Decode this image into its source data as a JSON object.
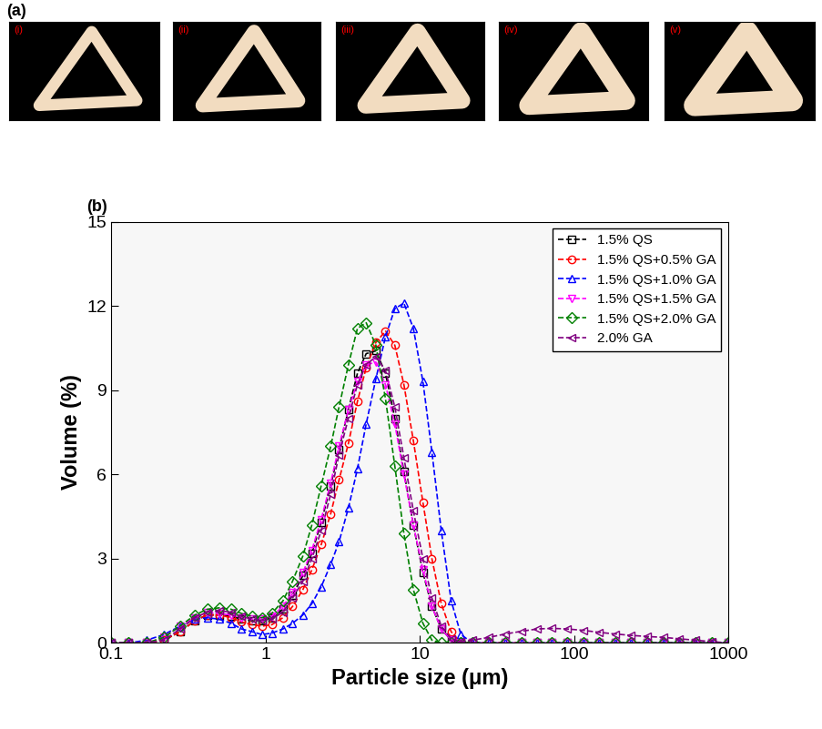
{
  "panel_a": {
    "label": "(a)",
    "photo_labels": [
      "(i)",
      "(ii)",
      "(iii)",
      "(iv)",
      "(v)"
    ]
  },
  "chart_data": {
    "type": "line",
    "panel_label": "(b)",
    "x_label": "Particle size (μm)",
    "y_label": "Volume (%)",
    "log": "x",
    "xlim": [
      0.1,
      1000
    ],
    "xticks": [
      0.1,
      1,
      10,
      100,
      1000
    ],
    "ylim": [
      0,
      15
    ],
    "yticks": [
      0,
      3,
      6,
      9,
      12,
      15
    ],
    "legend": "upper right",
    "x": [
      0.1,
      0.13,
      0.17,
      0.22,
      0.28,
      0.35,
      0.42,
      0.5,
      0.6,
      0.7,
      0.82,
      0.95,
      1.1,
      1.3,
      1.5,
      1.75,
      2.0,
      2.3,
      2.65,
      3.0,
      3.45,
      3.95,
      4.5,
      5.2,
      6.0,
      6.9,
      7.9,
      9.1,
      10.5,
      12.0,
      13.8,
      16.0,
      18.5,
      22,
      28,
      36,
      46,
      58,
      72,
      90,
      115,
      145,
      185,
      235,
      300,
      380,
      480,
      610,
      780,
      1000
    ],
    "series": [
      {
        "name": "1.5% QS",
        "color": "#000000",
        "marker": "square",
        "line_style": "dashed",
        "values": [
          0,
          0,
          0,
          0.1,
          0.4,
          0.8,
          1.0,
          1.0,
          0.95,
          0.85,
          0.8,
          0.8,
          0.9,
          1.2,
          1.7,
          2.4,
          3.2,
          4.3,
          5.6,
          6.9,
          8.3,
          9.6,
          10.3,
          10.4,
          9.6,
          8.0,
          6.1,
          4.2,
          2.5,
          1.3,
          0.5,
          0.1,
          0,
          0,
          0,
          0,
          0,
          0,
          0,
          0,
          0,
          0,
          0,
          0,
          0,
          0,
          0,
          0,
          0,
          0
        ]
      },
      {
        "name": "1.5% QS+0.5% GA",
        "color": "#ff0000",
        "marker": "circle",
        "line_style": "dashed",
        "values": [
          0,
          0,
          0,
          0.1,
          0.4,
          0.8,
          1.0,
          1.0,
          0.9,
          0.75,
          0.65,
          0.6,
          0.65,
          0.9,
          1.3,
          1.9,
          2.6,
          3.5,
          4.6,
          5.8,
          7.1,
          8.6,
          9.8,
          10.7,
          11.1,
          10.6,
          9.2,
          7.2,
          5.0,
          3.0,
          1.4,
          0.4,
          0,
          0,
          0,
          0,
          0,
          0,
          0,
          0,
          0,
          0,
          0,
          0,
          0,
          0,
          0,
          0,
          0,
          0
        ]
      },
      {
        "name": "1.5% QS+1.0% GA",
        "color": "#0000ff",
        "marker": "triangle_up",
        "line_style": "dashed",
        "values": [
          0,
          0,
          0.1,
          0.3,
          0.6,
          0.85,
          0.9,
          0.85,
          0.7,
          0.5,
          0.4,
          0.3,
          0.35,
          0.5,
          0.7,
          1.0,
          1.4,
          2.0,
          2.8,
          3.6,
          4.8,
          6.2,
          7.8,
          9.4,
          10.9,
          11.9,
          12.1,
          11.2,
          9.3,
          6.8,
          4.0,
          1.5,
          0.3,
          0,
          0,
          0,
          0,
          0,
          0,
          0,
          0,
          0,
          0,
          0,
          0,
          0,
          0,
          0,
          0,
          0
        ]
      },
      {
        "name": "1.5% QS+1.5% GA",
        "color": "#ff00ff",
        "marker": "triangle_down",
        "line_style": "dashed",
        "values": [
          0,
          0,
          0,
          0.2,
          0.6,
          0.9,
          1.1,
          1.05,
          1.0,
          0.9,
          0.85,
          0.85,
          0.95,
          1.3,
          1.8,
          2.5,
          3.3,
          4.4,
          5.7,
          7.0,
          8.3,
          9.3,
          9.9,
          10.0,
          9.2,
          7.8,
          6.0,
          4.2,
          2.6,
          1.3,
          0.5,
          0.1,
          0,
          0,
          0,
          0,
          0,
          0,
          0,
          0,
          0,
          0,
          0,
          0,
          0,
          0,
          0,
          0,
          0,
          0
        ]
      },
      {
        "name": "1.5% QS+2.0% GA",
        "color": "#008000",
        "marker": "diamond",
        "line_style": "dashed",
        "values": [
          0,
          0,
          0,
          0.2,
          0.6,
          1.0,
          1.2,
          1.25,
          1.2,
          1.05,
          0.95,
          0.9,
          1.05,
          1.5,
          2.2,
          3.1,
          4.2,
          5.6,
          7.0,
          8.4,
          9.9,
          11.2,
          11.4,
          10.6,
          8.7,
          6.3,
          3.9,
          1.9,
          0.7,
          0.1,
          0,
          0,
          0,
          0,
          0,
          0,
          0,
          0,
          0,
          0,
          0,
          0,
          0,
          0,
          0,
          0,
          0,
          0,
          0,
          0
        ]
      },
      {
        "name": "2.0% GA",
        "color": "#800080",
        "marker": "triangle_left",
        "line_style": "dashed",
        "values": [
          0,
          0,
          0,
          0.1,
          0.5,
          0.9,
          1.1,
          1.15,
          1.1,
          0.95,
          0.85,
          0.8,
          0.85,
          1.1,
          1.6,
          2.2,
          3.0,
          4.0,
          5.3,
          6.7,
          8.0,
          9.2,
          9.9,
          10.2,
          9.7,
          8.4,
          6.6,
          4.7,
          3.0,
          1.6,
          0.6,
          0.15,
          0.05,
          0.1,
          0.2,
          0.32,
          0.42,
          0.5,
          0.52,
          0.5,
          0.45,
          0.38,
          0.32,
          0.27,
          0.23,
          0.2,
          0.15,
          0.1,
          0.05,
          0
        ]
      }
    ]
  }
}
